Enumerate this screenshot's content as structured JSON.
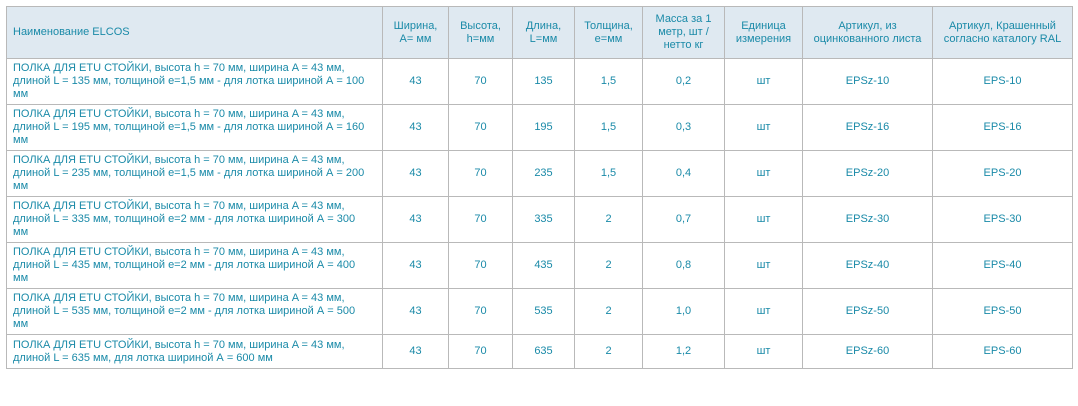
{
  "table": {
    "headers": [
      "Наименование ELCOS",
      "Ширина, A= мм",
      "Высота, h=мм",
      "Длина, L=мм",
      "Толщина, е=мм",
      "Масса за 1 метр, шт / нетто кг",
      "Единица измерения",
      "Артикул, из оцинкованного листа",
      "Артикул, Крашенный согласно каталогу RAL"
    ],
    "rows": [
      {
        "name": "ПОЛКА ДЛЯ ETU СТОЙКИ, высота h = 70 мм, ширина A = 43 мм, длиной L = 135 мм, толщиной е=1,5 мм - для лотка шириной А = 100 мм",
        "width": "43",
        "height": "70",
        "length": "135",
        "thickness": "1,5",
        "mass": "0,2",
        "unit": "шт",
        "article_galv": "EPSz-10",
        "article_ral": "EPS-10"
      },
      {
        "name": "ПОЛКА ДЛЯ ETU СТОЙКИ, высота h = 70 мм, ширина A = 43 мм, длиной L = 195 мм, толщиной е=1,5 мм - для лотка шириной А = 160 мм",
        "width": "43",
        "height": "70",
        "length": "195",
        "thickness": "1,5",
        "mass": "0,3",
        "unit": "шт",
        "article_galv": "EPSz-16",
        "article_ral": "EPS-16"
      },
      {
        "name": "ПОЛКА ДЛЯ ETU СТОЙКИ, высота h = 70 мм, ширина A = 43 мм, длиной L = 235 мм, толщиной е=1,5 мм - для лотка шириной А = 200 мм",
        "width": "43",
        "height": "70",
        "length": "235",
        "thickness": "1,5",
        "mass": "0,4",
        "unit": "шт",
        "article_galv": "EPSz-20",
        "article_ral": "EPS-20"
      },
      {
        "name": "ПОЛКА ДЛЯ ETU СТОЙКИ, высота h = 70 мм, ширина A = 43 мм, длиной L = 335 мм, толщиной е=2 мм - для лотка шириной А = 300 мм",
        "width": "43",
        "height": "70",
        "length": "335",
        "thickness": "2",
        "mass": "0,7",
        "unit": "шт",
        "article_galv": "EPSz-30",
        "article_ral": "EPS-30"
      },
      {
        "name": "ПОЛКА ДЛЯ ETU СТОЙКИ, высота h = 70 мм, ширина A = 43 мм, длиной L = 435 мм, толщиной е=2 мм - для лотка шириной А = 400 мм",
        "width": "43",
        "height": "70",
        "length": "435",
        "thickness": "2",
        "mass": "0,8",
        "unit": "шт",
        "article_galv": "EPSz-40",
        "article_ral": "EPS-40"
      },
      {
        "name": "ПОЛКА ДЛЯ ETU СТОЙКИ, высота h = 70 мм, ширина A = 43 мм, длиной L = 535 мм, толщиной е=2 мм - для лотка шириной А = 500 мм",
        "width": "43",
        "height": "70",
        "length": "535",
        "thickness": "2",
        "mass": "1,0",
        "unit": "шт",
        "article_galv": "EPSz-50",
        "article_ral": "EPS-50"
      },
      {
        "name": "ПОЛКА ДЛЯ ETU СТОЙКИ, высота h = 70 мм, ширина A = 43 мм, длиной L = 635 мм, для лотка шириной А = 600 мм",
        "width": "43",
        "height": "70",
        "length": "635",
        "thickness": "2",
        "mass": "1,2",
        "unit": "шт",
        "article_galv": "EPSz-60",
        "article_ral": "EPS-60"
      }
    ]
  },
  "colors": {
    "text": "#1a8aa8",
    "header_bg": "#dfe9f1",
    "border": "#b9b9b9"
  }
}
